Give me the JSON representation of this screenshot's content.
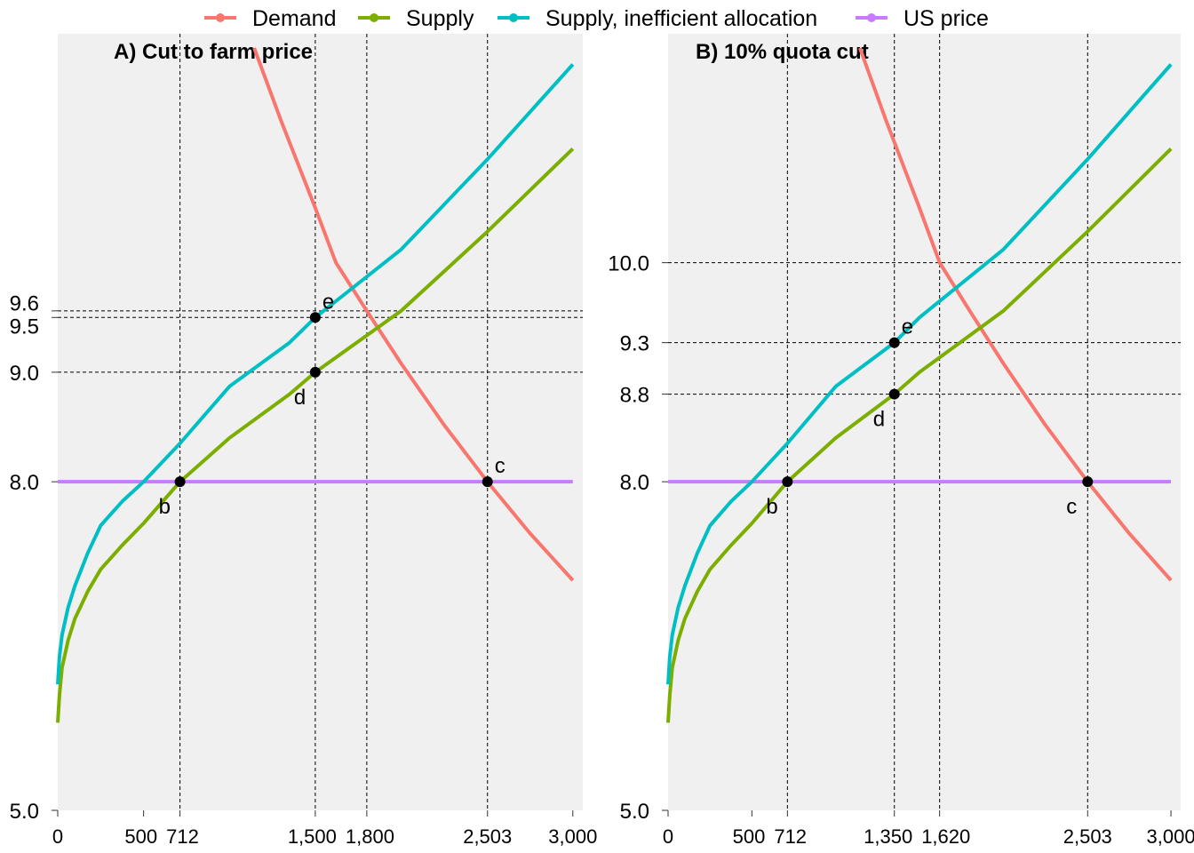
{
  "chart_data": [
    {
      "type": "line",
      "title": "A) Cut to farm price",
      "xlim": [
        0,
        3058
      ],
      "ylim": [
        5,
        12.09
      ],
      "x_ticks": [
        {
          "v": 0,
          "label": "0"
        },
        {
          "v": 500,
          "label": "500"
        },
        {
          "v": 712,
          "label": "712"
        },
        {
          "v": 1500,
          "label": "1,500"
        },
        {
          "v": 1800,
          "label": "1,800"
        },
        {
          "v": 2503,
          "label": "2,503"
        },
        {
          "v": 3000,
          "label": "3,000"
        }
      ],
      "y_ticks": [
        {
          "v": 5,
          "label": "5.0"
        },
        {
          "v": 8,
          "label": "8.0"
        },
        {
          "v": 9,
          "label": "9.0"
        },
        {
          "v": 9.5,
          "label": "9.5"
        },
        {
          "v": 9.56,
          "label": "9.6"
        }
      ],
      "vlines": [
        712,
        1500,
        1800,
        2503
      ],
      "hlines": [
        9,
        9.5,
        9.56
      ],
      "points": [
        {
          "label": "b",
          "x": 712,
          "y": 8.0,
          "pos": "lower-left"
        },
        {
          "label": "c",
          "x": 2503,
          "y": 8.0,
          "pos": "upper-right"
        },
        {
          "label": "d",
          "x": 1500,
          "y": 9.0,
          "pos": "lower-left"
        },
        {
          "label": "e",
          "x": 1500,
          "y": 9.5,
          "pos": "upper-right"
        }
      ]
    },
    {
      "type": "line",
      "title": "B) 10% quota cut",
      "xlim": [
        0,
        3058
      ],
      "ylim": [
        5,
        12.09
      ],
      "x_ticks": [
        {
          "v": 0,
          "label": "0"
        },
        {
          "v": 500,
          "label": "500"
        },
        {
          "v": 712,
          "label": "712"
        },
        {
          "v": 1350,
          "label": "1,350"
        },
        {
          "v": 1620,
          "label": "1,620"
        },
        {
          "v": 2503,
          "label": "2,503"
        },
        {
          "v": 3000,
          "label": "3,000"
        }
      ],
      "y_ticks": [
        {
          "v": 5,
          "label": "5.0"
        },
        {
          "v": 8,
          "label": "8.0"
        },
        {
          "v": 8.8,
          "label": "8.8"
        },
        {
          "v": 9.27,
          "label": "9.3"
        },
        {
          "v": 10,
          "label": "10.0"
        }
      ],
      "vlines": [
        712,
        1350,
        1620,
        2503
      ],
      "hlines": [
        8.8,
        9.27,
        10
      ],
      "points": [
        {
          "label": "b",
          "x": 712,
          "y": 8.0,
          "pos": "lower-left"
        },
        {
          "label": "c",
          "x": 2503,
          "y": 8.0,
          "pos": "lower-left"
        },
        {
          "label": "d",
          "x": 1350,
          "y": 8.8,
          "pos": "lower-left"
        },
        {
          "label": "e",
          "x": 1350,
          "y": 9.27,
          "pos": "upper-right"
        }
      ]
    }
  ],
  "series": [
    {
      "name": "Demand",
      "color": "#F8766D",
      "x": [
        1144,
        1300,
        1500,
        1620,
        1800,
        2000,
        2250,
        2503,
        2750,
        3000
      ],
      "y": [
        11.96,
        11.3,
        10.5,
        10.0,
        9.56,
        9.08,
        8.52,
        8.0,
        7.53,
        7.1
      ]
    },
    {
      "name": "Supply",
      "color": "#7CAE00",
      "x": [
        0,
        10,
        25,
        60,
        100,
        175,
        250,
        375,
        500,
        712,
        1000,
        1350,
        1500,
        2000,
        2500,
        3000
      ],
      "y": [
        5.8,
        6.05,
        6.3,
        6.55,
        6.75,
        7.0,
        7.2,
        7.42,
        7.62,
        8.0,
        8.4,
        8.8,
        9.0,
        9.56,
        10.28,
        11.04
      ]
    },
    {
      "name": "Supply, inefficient allocation",
      "color": "#00BFC4",
      "x": [
        0,
        10,
        25,
        60,
        100,
        175,
        250,
        375,
        500,
        712,
        1000,
        1350,
        1500,
        2000,
        2500,
        3000
      ],
      "y": [
        6.15,
        6.4,
        6.6,
        6.85,
        7.05,
        7.35,
        7.6,
        7.82,
        8.0,
        8.35,
        8.87,
        9.27,
        9.5,
        10.12,
        10.94,
        11.81
      ]
    },
    {
      "name": "US price",
      "color": "#C77CFF",
      "x": [
        0,
        3000
      ],
      "y": [
        8,
        8
      ]
    }
  ]
}
